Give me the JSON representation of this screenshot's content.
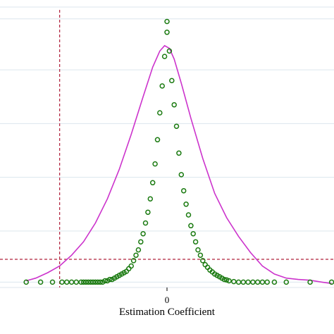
{
  "chart_data": {
    "type": "scatter",
    "xlabel": "Estimation Coefficient",
    "x_ticks": [
      0
    ],
    "x_tick_labels": [
      "0"
    ],
    "xlim": [
      -0.07,
      0.07
    ],
    "ylim": [
      0,
      1.07
    ],
    "y_gridlines": [
      0.02,
      0.21,
      0.41,
      0.61,
      0.81,
      1.0
    ],
    "grid": true,
    "reference_lines": {
      "vertical_x": -0.045,
      "horizontal_y": 0.105
    },
    "colors": {
      "points": "#1a7a10",
      "density": "#cc33cc",
      "reference": "#b0203a",
      "grid": "#dce6ee",
      "frame": "#dce6ee"
    },
    "series": [
      {
        "kind": "scatter",
        "marker": "hollow-circle",
        "points": [
          [
            -0.059,
            0.02
          ],
          [
            -0.053,
            0.02
          ],
          [
            -0.048,
            0.02
          ],
          [
            -0.044,
            0.02
          ],
          [
            -0.042,
            0.02
          ],
          [
            -0.04,
            0.02
          ],
          [
            -0.038,
            0.02
          ],
          [
            -0.036,
            0.02
          ],
          [
            -0.035,
            0.02
          ],
          [
            -0.034,
            0.02
          ],
          [
            -0.033,
            0.02
          ],
          [
            -0.032,
            0.02
          ],
          [
            -0.031,
            0.02
          ],
          [
            -0.03,
            0.02
          ],
          [
            -0.029,
            0.02
          ],
          [
            -0.028,
            0.02
          ],
          [
            -0.027,
            0.02
          ],
          [
            -0.026,
            0.025
          ],
          [
            -0.025,
            0.025
          ],
          [
            -0.024,
            0.03
          ],
          [
            -0.023,
            0.03
          ],
          [
            -0.022,
            0.035
          ],
          [
            -0.021,
            0.04
          ],
          [
            -0.02,
            0.045
          ],
          [
            -0.019,
            0.05
          ],
          [
            -0.018,
            0.055
          ],
          [
            -0.017,
            0.06
          ],
          [
            -0.016,
            0.07
          ],
          [
            -0.015,
            0.08
          ],
          [
            -0.014,
            0.1
          ],
          [
            -0.013,
            0.12
          ],
          [
            -0.012,
            0.14
          ],
          [
            -0.011,
            0.17
          ],
          [
            -0.01,
            0.2
          ],
          [
            -0.009,
            0.24
          ],
          [
            -0.008,
            0.28
          ],
          [
            -0.007,
            0.33
          ],
          [
            -0.006,
            0.39
          ],
          [
            -0.005,
            0.46
          ],
          [
            -0.004,
            0.55
          ],
          [
            -0.003,
            0.65
          ],
          [
            -0.002,
            0.75
          ],
          [
            -0.001,
            0.86
          ],
          [
            0.0,
            0.95
          ],
          [
            0.0,
            0.99
          ],
          [
            0.001,
            0.88
          ],
          [
            0.002,
            0.77
          ],
          [
            0.003,
            0.68
          ],
          [
            0.004,
            0.6
          ],
          [
            0.005,
            0.5
          ],
          [
            0.006,
            0.42
          ],
          [
            0.007,
            0.36
          ],
          [
            0.008,
            0.31
          ],
          [
            0.009,
            0.27
          ],
          [
            0.01,
            0.23
          ],
          [
            0.011,
            0.2
          ],
          [
            0.012,
            0.17
          ],
          [
            0.013,
            0.14
          ],
          [
            0.014,
            0.12
          ],
          [
            0.015,
            0.1
          ],
          [
            0.016,
            0.085
          ],
          [
            0.017,
            0.075
          ],
          [
            0.018,
            0.065
          ],
          [
            0.019,
            0.058
          ],
          [
            0.02,
            0.05
          ],
          [
            0.021,
            0.045
          ],
          [
            0.022,
            0.04
          ],
          [
            0.023,
            0.035
          ],
          [
            0.024,
            0.03
          ],
          [
            0.025,
            0.028
          ],
          [
            0.026,
            0.025
          ],
          [
            0.028,
            0.022
          ],
          [
            0.03,
            0.02
          ],
          [
            0.032,
            0.02
          ],
          [
            0.034,
            0.02
          ],
          [
            0.036,
            0.02
          ],
          [
            0.038,
            0.02
          ],
          [
            0.04,
            0.02
          ],
          [
            0.042,
            0.02
          ],
          [
            0.045,
            0.02
          ],
          [
            0.05,
            0.02
          ],
          [
            0.06,
            0.02
          ],
          [
            0.069,
            0.02
          ]
        ]
      },
      {
        "kind": "line",
        "points": [
          [
            -0.059,
            0.025
          ],
          [
            -0.055,
            0.035
          ],
          [
            -0.05,
            0.055
          ],
          [
            -0.045,
            0.08
          ],
          [
            -0.04,
            0.12
          ],
          [
            -0.035,
            0.17
          ],
          [
            -0.03,
            0.24
          ],
          [
            -0.025,
            0.33
          ],
          [
            -0.02,
            0.44
          ],
          [
            -0.015,
            0.57
          ],
          [
            -0.01,
            0.71
          ],
          [
            -0.006,
            0.82
          ],
          [
            -0.003,
            0.88
          ],
          [
            -0.001,
            0.9
          ],
          [
            0.001,
            0.89
          ],
          [
            0.003,
            0.85
          ],
          [
            0.006,
            0.76
          ],
          [
            0.01,
            0.63
          ],
          [
            0.015,
            0.48
          ],
          [
            0.02,
            0.35
          ],
          [
            0.025,
            0.26
          ],
          [
            0.03,
            0.19
          ],
          [
            0.035,
            0.13
          ],
          [
            0.04,
            0.08
          ],
          [
            0.045,
            0.05
          ],
          [
            0.05,
            0.035
          ],
          [
            0.055,
            0.03
          ],
          [
            0.06,
            0.027
          ],
          [
            0.065,
            0.02
          ],
          [
            0.069,
            0.015
          ]
        ]
      }
    ]
  }
}
